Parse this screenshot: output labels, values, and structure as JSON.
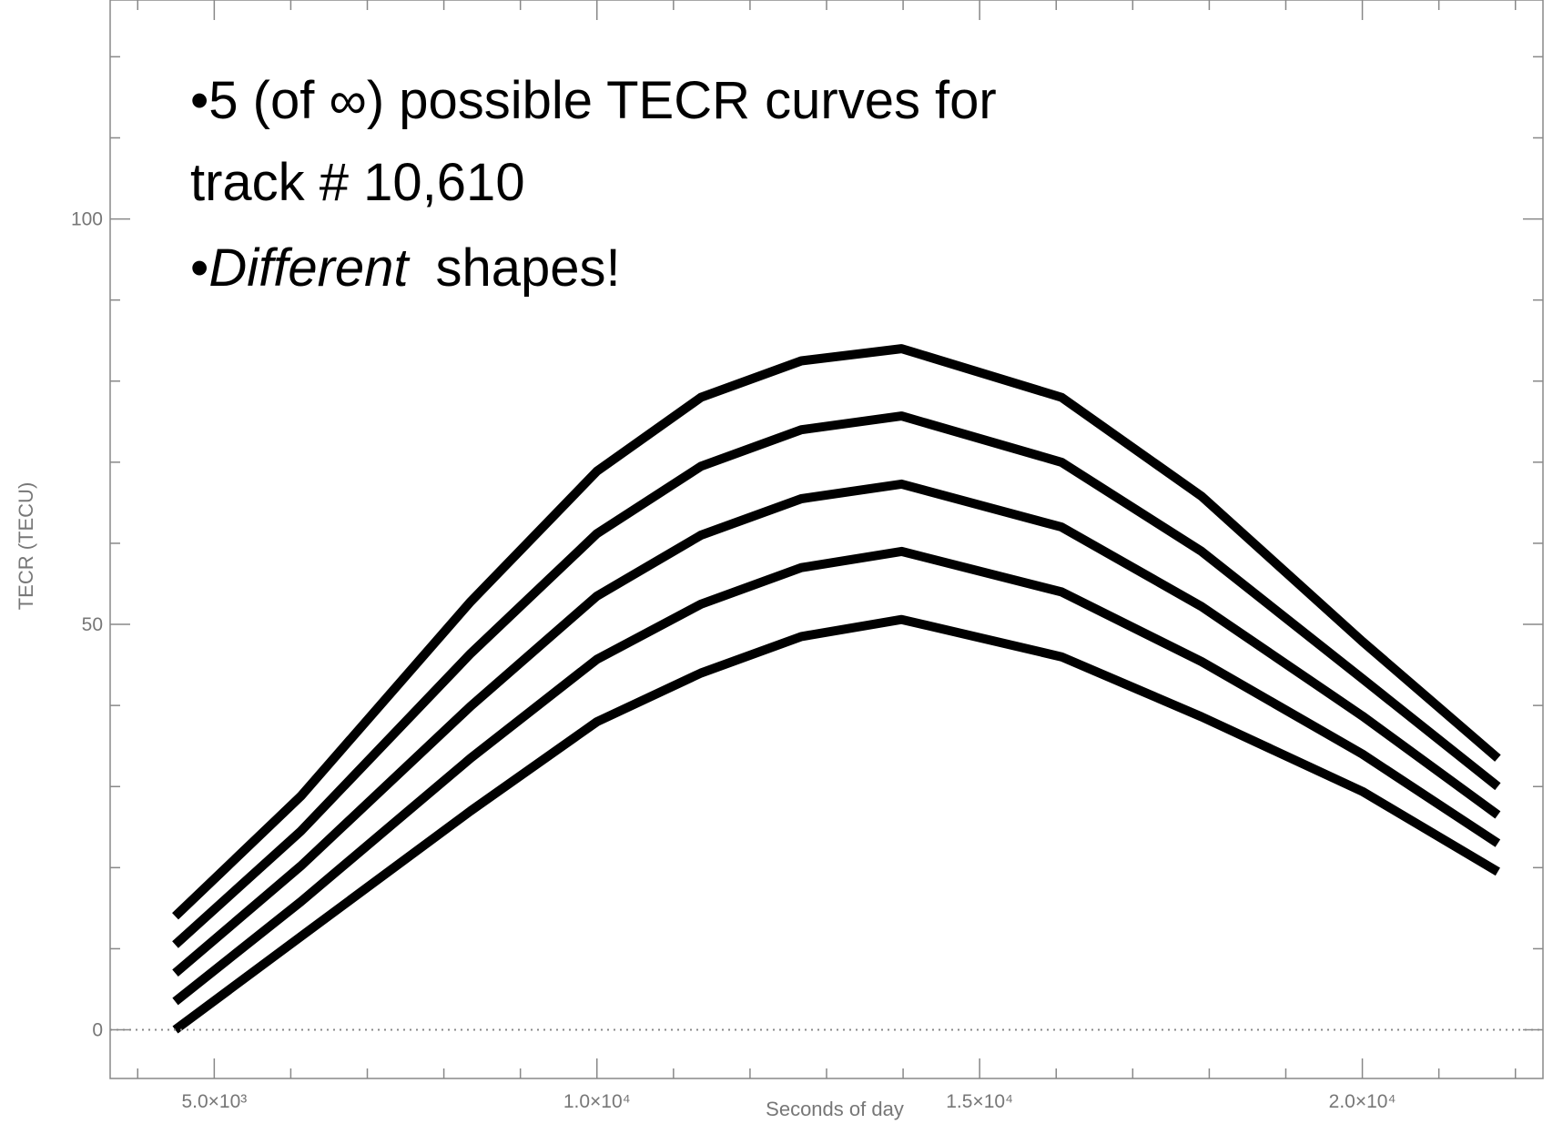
{
  "chart_data": {
    "type": "line",
    "annotation": [
      "•5 (of ∞) possible TECR curves for",
      "track # 10,610"
    ],
    "annotation_bullet": "•",
    "annotation_emphasis": "Different",
    "annotation_rest": "shapes!",
    "xlabel": "Seconds of day",
    "ylabel": "TECR (TECU)",
    "x": [
      4490,
      6130,
      8350,
      10000,
      11360,
      12670,
      13980,
      16070,
      17900,
      20000,
      21770
    ],
    "series": [
      {
        "color": "#000000",
        "values": [
          0,
          11.5,
          27,
          38,
          44,
          48.5,
          50.6,
          46,
          38.6,
          29.4,
          19.5
        ]
      },
      {
        "color": "#000000",
        "values": [
          3.5,
          15.8,
          33.5,
          45.7,
          52.5,
          57,
          59,
          54,
          45.4,
          34,
          23
        ]
      },
      {
        "color": "#000000",
        "values": [
          7,
          20.2,
          39.9,
          53.5,
          61,
          65.5,
          67.3,
          62,
          52.2,
          38.7,
          26.5
        ]
      },
      {
        "color": "#000000",
        "values": [
          10.5,
          24.5,
          46.4,
          61.2,
          69.5,
          74,
          75.7,
          70,
          59,
          43.3,
          30
        ]
      },
      {
        "color": "#000000",
        "values": [
          14,
          28.8,
          52.8,
          68.9,
          78,
          82.5,
          84,
          78,
          65.8,
          47.9,
          33.5
        ]
      }
    ],
    "xlim": [
      3640,
      22360
    ],
    "ylim": [
      -6,
      127
    ],
    "xticks": [
      {
        "value": 5000,
        "label": "5.0×10³"
      },
      {
        "value": 10000,
        "label": "1.0×10⁴"
      },
      {
        "value": 15000,
        "label": "1.5×10⁴"
      },
      {
        "value": 20000,
        "label": "2.0×10⁴"
      }
    ],
    "yticks": [
      0,
      50,
      100
    ],
    "xminorticks": [
      4000,
      6000,
      7000,
      8000,
      9000,
      11000,
      12000,
      13000,
      14000,
      16000,
      17000,
      18000,
      19000,
      21000,
      22000
    ],
    "yminorticks": [
      10,
      20,
      30,
      40,
      60,
      70,
      80,
      90,
      110,
      120
    ],
    "zero_line": true
  }
}
